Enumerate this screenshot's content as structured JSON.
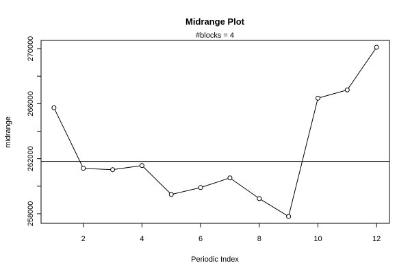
{
  "chart_data": {
    "type": "line",
    "title": "Midrange Plot",
    "subtitle": "#blocks =  4",
    "xlabel": "Periodic Index",
    "ylabel": "midrange",
    "x": [
      1,
      2,
      3,
      4,
      5,
      6,
      7,
      8,
      9,
      10,
      11,
      12
    ],
    "series": [
      {
        "values": [
          265700,
          261300,
          261200,
          261500,
          259400,
          259900,
          260600,
          259100,
          257800,
          266400,
          267000,
          270100
        ],
        "marker": "open-circle",
        "line": true
      }
    ],
    "reference_line": {
      "orientation": "horizontal",
      "value": 261800
    },
    "xlim": [
      0.56,
      12.44
    ],
    "ylim": [
      257300,
      270600
    ],
    "x_ticks": [
      2,
      4,
      6,
      8,
      10,
      12
    ],
    "y_ticks": [
      258000,
      262000,
      266000,
      270000
    ],
    "y_minor_ticks": [
      260000,
      264000,
      268000
    ],
    "grid": false,
    "colors": {
      "line": "#000000",
      "marker_fill": "#ffffff",
      "axis": "#000000"
    }
  }
}
